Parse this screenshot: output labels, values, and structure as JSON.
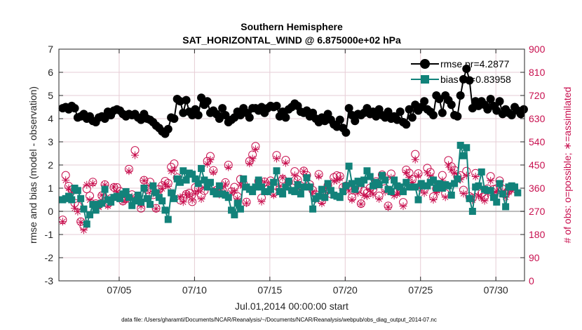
{
  "chart_data": {
    "type": "line",
    "title": "Southern Hemisphere",
    "subtitle": "SAT_HORIZONTAL_WIND @ 6.875000e+02 hPa",
    "xlabel": "Jul.01,2014 00:00:00 start",
    "ylabel_left": "rmse and bias (model - observation)",
    "ylabel_right": "# of obs: o=possible; ∗=assimilated",
    "x_domain": [
      1.0,
      31.9
    ],
    "x_ticks": [
      {
        "day": 5,
        "label": "07/05"
      },
      {
        "day": 10,
        "label": "07/10"
      },
      {
        "day": 15,
        "label": "07/15"
      },
      {
        "day": 20,
        "label": "07/20"
      },
      {
        "day": 25,
        "label": "07/25"
      },
      {
        "day": 30,
        "label": "07/30"
      }
    ],
    "ylim_left": [
      -3,
      7
    ],
    "yticks_left": [
      "-3",
      "-2",
      "-1",
      "0",
      "1",
      "2",
      "3",
      "4",
      "5",
      "6",
      "7"
    ],
    "ylim_right": [
      0,
      900
    ],
    "yticks_right": [
      "0",
      "90",
      "180",
      "270",
      "360",
      "450",
      "540",
      "630",
      "720",
      "810",
      "900"
    ],
    "grid": true,
    "legend_position": "top-right",
    "footnote": "data file: /Users/gharamti/Documents/NCAR/Reanalysis/~/Documents/NCAR/Reanalysis/webpub/obs_diag_output_2014-07.nc",
    "colors": {
      "rmse": "#000000",
      "bias": "#12827a",
      "obs": "#c8104f",
      "zero_line": "#a6a6a6",
      "grid": "#e6cdd5"
    },
    "series": [
      {
        "name": "rmse pr=4.2877",
        "axis": "left",
        "marker": "circle",
        "values": [
          4.45,
          4.5,
          4.4,
          4.55,
          4.45,
          4.05,
          4.1,
          4.2,
          4.0,
          4.1,
          3.9,
          3.85,
          4.05,
          4.1,
          4.0,
          4.3,
          4.15,
          4.35,
          4.4,
          4.35,
          4.2,
          4.1,
          4.2,
          4.15,
          4.2,
          4.05,
          3.95,
          4.2,
          4.0,
          3.95,
          3.85,
          3.7,
          3.6,
          3.45,
          3.35,
          3.55,
          4.05,
          4.0,
          4.85,
          4.75,
          4.25,
          4.8,
          4.3,
          4.15,
          4.4,
          4.15,
          4.9,
          4.6,
          4.75,
          4.25,
          4.35,
          4.2,
          4.0,
          4.45,
          4.15,
          3.85,
          3.95,
          4.05,
          4.3,
          4.15,
          4.45,
          4.25,
          4.05,
          4.45,
          4.45,
          4.35,
          4.5,
          4.25,
          4.45,
          4.55,
          4.5,
          4.55,
          4.1,
          4.3,
          4.05,
          4.4,
          4.5,
          4.65,
          4.55,
          4.3,
          4.25,
          4.35,
          4.1,
          4.25,
          4.0,
          3.85,
          4.05,
          3.9,
          4.2,
          3.95,
          3.75,
          3.65,
          3.95,
          3.6,
          3.4,
          4.45,
          4.15,
          3.9,
          4.2,
          4.15,
          4.25,
          4.45,
          4.2,
          4.3,
          4.1,
          4.4,
          4.15,
          4.05,
          4.3,
          4.0,
          4.1,
          3.95,
          4.3,
          3.85,
          3.75,
          4.4,
          4.05,
          4.6,
          4.35,
          4.5,
          4.75,
          4.4,
          4.3,
          4.15,
          5.0,
          4.85,
          4.25,
          5.0,
          4.8,
          4.6,
          4.15,
          4.1,
          5.0,
          5.7,
          6.15,
          5.65,
          4.45,
          4.75,
          4.55,
          4.75,
          4.6,
          4.4,
          4.85,
          4.55,
          4.35,
          4.75,
          4.2,
          4.4,
          4.25,
          4.15,
          4.5,
          4.35,
          4.2,
          4.4
        ]
      },
      {
        "name": "bias pr=0.83958",
        "axis": "left",
        "marker": "square",
        "values": [
          0.5,
          0.55,
          0.65,
          0.5,
          1.0,
          0.9,
          0.55,
          0.1,
          -0.55,
          -0.15,
          0.3,
          0.05,
          0.3,
          0.35,
          0.95,
          0.5,
          0.4,
          0.6,
          0.65,
          0.55,
          0.75,
          0.85,
          0.6,
          0.25,
          0.45,
          0.7,
          0.4,
          1.0,
          0.55,
          0.3,
          1.1,
          0.8,
          0.6,
          0.45,
          0.05,
          -0.35,
          0.8,
          0.55,
          1.4,
          1.25,
          1.75,
          1.35,
          1.65,
          1.6,
          1.4,
          1.2,
          1.85,
          1.35,
          1.05,
          1.25,
          0.85,
          0.75,
          1.1,
          0.75,
          0.7,
          0.6,
          0.05,
          -0.15,
          0.35,
          0.1,
          1.4,
          1.05,
          0.95,
          0.85,
          1.05,
          1.35,
          1.05,
          0.85,
          0.85,
          0.95,
          1.25,
          1.75,
          0.85,
          0.75,
          1.05,
          1.3,
          0.9,
          0.85,
          1.15,
          0.75,
          1.05,
          1.45,
          1.05,
          0.1,
          0.55,
          0.65,
          0.95,
          0.6,
          1.2,
          0.9,
          0.7,
          0.65,
          0.6,
          0.85,
          1.1,
          1.95,
          1.2,
          0.95,
          1.3,
          1.2,
          1.35,
          1.75,
          1.5,
          1.1,
          1.25,
          1.15,
          1.55,
          1.35,
          0.95,
          0.85,
          1.35,
          1.1,
          1.05,
          0.85,
          1.25,
          1.05,
          1.05,
          1.05,
          0.5,
          1.2,
          1.1,
          1.1,
          1.25,
          1.35,
          1.0,
          1.2,
          1.0,
          1.15,
          1.1,
          0.7,
          1.2,
          1.4,
          2.85,
          2.4,
          2.75,
          0.55,
          0.0,
          1.05,
          1.1,
          1.7,
          0.95,
          0.9,
          0.9,
          0.6,
          0.4,
          1.2,
          0.75,
          0.2,
          1.05,
          1.1,
          1.05,
          0.8
        ]
      },
      {
        "name": "possible",
        "axis": "right",
        "marker": "open-circle",
        "values": [
          237,
          410,
          368,
          354,
          302,
          292,
          230,
          212,
          357,
          330,
          384,
          300,
          295,
          331,
          374,
          299,
          320,
          363,
          363,
          348,
          310,
          319,
          434,
          335,
          507,
          322,
          282,
          391,
          355,
          384,
          334,
          282,
          356,
          370,
          387,
          379,
          442,
          455,
          401,
          314,
          321,
          336,
          341,
          307,
          363,
          359,
          332,
          350,
          465,
          484,
          429,
          352,
          340,
          353,
          382,
          450,
          347,
          364,
          328,
          395,
          377,
          306,
          465,
          490,
          523,
          387,
          322,
          385,
          355,
          389,
          342,
          488,
          356,
          395,
          469,
          385,
          362,
          425,
          392,
          369,
          427,
          410,
          374,
          352,
          335,
          414,
          311,
          348,
          371,
          338,
          402,
          409,
          406,
          363,
          369,
          368,
          324,
          361,
          356,
          300,
          349,
          341,
          361,
          356,
          386,
          330,
          412,
          359,
          291,
          416,
          344,
          347,
          353,
          305,
          431,
          419,
          394,
          492,
          417,
          374,
          355,
          438,
          422,
          327,
          358,
          375,
          410,
          339,
          468,
          444,
          430,
          405,
          409,
          353,
          426,
          328,
          322,
          418,
          348,
          339,
          326,
          358,
          406,
          356,
          359,
          389,
          357,
          338,
          352,
          363
        ]
      },
      {
        "name": "assimilated",
        "axis": "right",
        "marker": "asterisk",
        "values": [
          230,
          391,
          360,
          346,
          282,
          269,
          228,
          197,
          373,
          314,
          378,
          283,
          286,
          333,
          372,
          291,
          315,
          365,
          345,
          336,
          308,
          315,
          426,
          327,
          488,
          318,
          290,
          389,
          352,
          371,
          339,
          280,
          347,
          358,
          377,
          367,
          426,
          430,
          394,
          325,
          306,
          335,
          335,
          314,
          339,
          350,
          318,
          361,
          454,
          470,
          422,
          354,
          335,
          361,
          376,
          441,
          341,
          349,
          319,
          373,
          372,
          302,
          456,
          475,
          511,
          375,
          308,
          384,
          347,
          380,
          333,
          475,
          367,
          401,
          458,
          376,
          349,
          410,
          386,
          354,
          425,
          404,
          367,
          346,
          317,
          406,
          301,
          351,
          369,
          346,
          388,
          390,
          398,
          351,
          363,
          349,
          315,
          346,
          342,
          298,
          331,
          329,
          352,
          336,
          380,
          318,
          400,
          346,
          286,
          401,
          331,
          337,
          344,
          290,
          421,
          402,
          383,
          471,
          409,
          358,
          341,
          420,
          407,
          315,
          343,
          355,
          390,
          325,
          450,
          431,
          420,
          390,
          393,
          339,
          409,
          319,
          314,
          405,
          330,
          321,
          311,
          340,
          389,
          341,
          349,
          374,
          348,
          325,
          344,
          352
        ]
      }
    ]
  }
}
